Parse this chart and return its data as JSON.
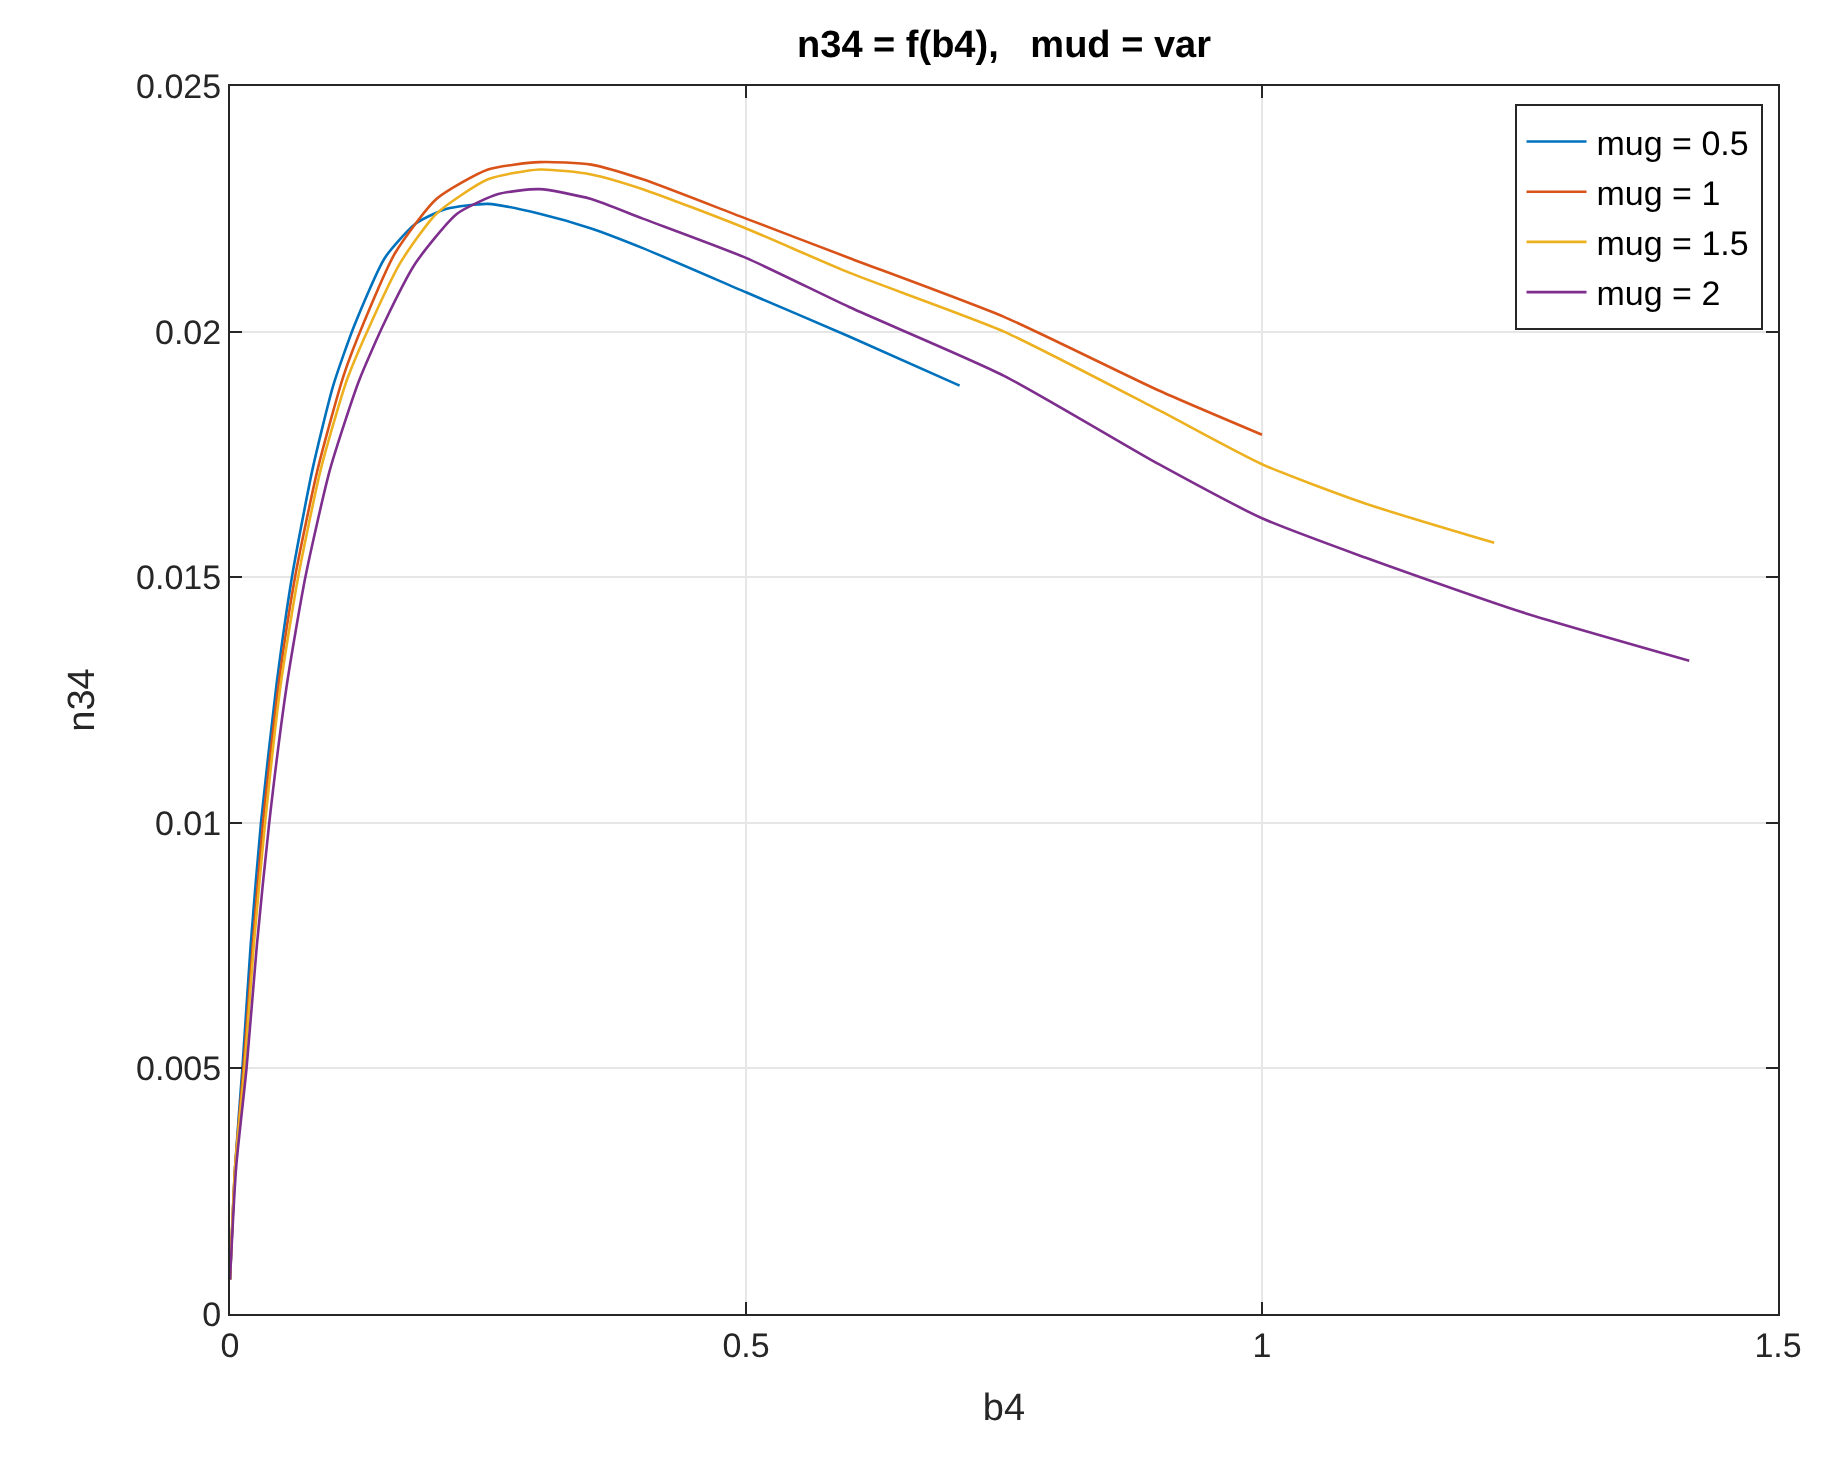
{
  "chart_data": {
    "type": "line",
    "title": "n34 = f(b4),   mud = var",
    "xlabel": "b4",
    "ylabel": "n34",
    "xlim": [
      0,
      1.5
    ],
    "xticks": [
      0,
      0.5,
      1,
      1.5
    ],
    "ylim": [
      0,
      0.025
    ],
    "yticks": [
      0,
      0.005,
      0.01,
      0.015,
      0.02,
      0.025
    ],
    "grid": true,
    "legend": "top right",
    "marker": "none",
    "line_style": "solid",
    "series": [
      {
        "name": "mug = 0.5",
        "color": "#0072bd",
        "x": [
          0,
          0.005,
          0.012,
          0.02,
          0.03,
          0.045,
          0.06,
          0.08,
          0.1,
          0.12,
          0.15,
          0.18,
          0.21,
          0.25,
          0.3,
          0.35,
          0.4,
          0.5,
          0.6,
          0.707
        ],
        "values": [
          0.0007,
          0.003,
          0.005,
          0.0075,
          0.01,
          0.0128,
          0.015,
          0.0172,
          0.0189,
          0.0201,
          0.0215,
          0.0222,
          0.0225,
          0.0226,
          0.0224,
          0.0221,
          0.0217,
          0.0208,
          0.0199,
          0.0189
        ]
      },
      {
        "name": "mug = 1",
        "color": "#d95319",
        "x": [
          0,
          0.005,
          0.013,
          0.022,
          0.032,
          0.047,
          0.063,
          0.085,
          0.11,
          0.13,
          0.16,
          0.2,
          0.25,
          0.3,
          0.35,
          0.4,
          0.5,
          0.6,
          0.75,
          0.9,
          1.0
        ],
        "values": [
          0.0007,
          0.003,
          0.005,
          0.0075,
          0.01,
          0.0128,
          0.015,
          0.0172,
          0.0191,
          0.0202,
          0.0216,
          0.0227,
          0.0233,
          0.02345,
          0.0234,
          0.0231,
          0.0223,
          0.0215,
          0.0203,
          0.0188,
          0.0179
        ]
      },
      {
        "name": "mug = 1.5",
        "color": "#edb120",
        "x": [
          0,
          0.005,
          0.014,
          0.023,
          0.034,
          0.049,
          0.066,
          0.088,
          0.113,
          0.135,
          0.165,
          0.2,
          0.25,
          0.3,
          0.35,
          0.4,
          0.5,
          0.6,
          0.75,
          0.9,
          1.0,
          1.1,
          1.225
        ],
        "values": [
          0.0007,
          0.003,
          0.005,
          0.0075,
          0.01,
          0.0128,
          0.015,
          0.0172,
          0.019,
          0.0201,
          0.0214,
          0.0224,
          0.0231,
          0.0233,
          0.0232,
          0.0229,
          0.0221,
          0.0212,
          0.02,
          0.0184,
          0.0173,
          0.0165,
          0.0157
        ]
      },
      {
        "name": "mug = 2",
        "color": "#7e2f8e",
        "x": [
          0,
          0.006,
          0.016,
          0.026,
          0.038,
          0.055,
          0.073,
          0.097,
          0.125,
          0.15,
          0.18,
          0.22,
          0.26,
          0.3,
          0.35,
          0.4,
          0.5,
          0.6,
          0.75,
          0.9,
          1.0,
          1.1,
          1.25,
          1.414
        ],
        "values": [
          0.0007,
          0.003,
          0.005,
          0.0075,
          0.01,
          0.0128,
          0.015,
          0.0172,
          0.019,
          0.0202,
          0.0214,
          0.0224,
          0.0228,
          0.0229,
          0.0227,
          0.0223,
          0.0215,
          0.0205,
          0.0191,
          0.0173,
          0.0162,
          0.0154,
          0.0143,
          0.0133
        ]
      }
    ]
  }
}
